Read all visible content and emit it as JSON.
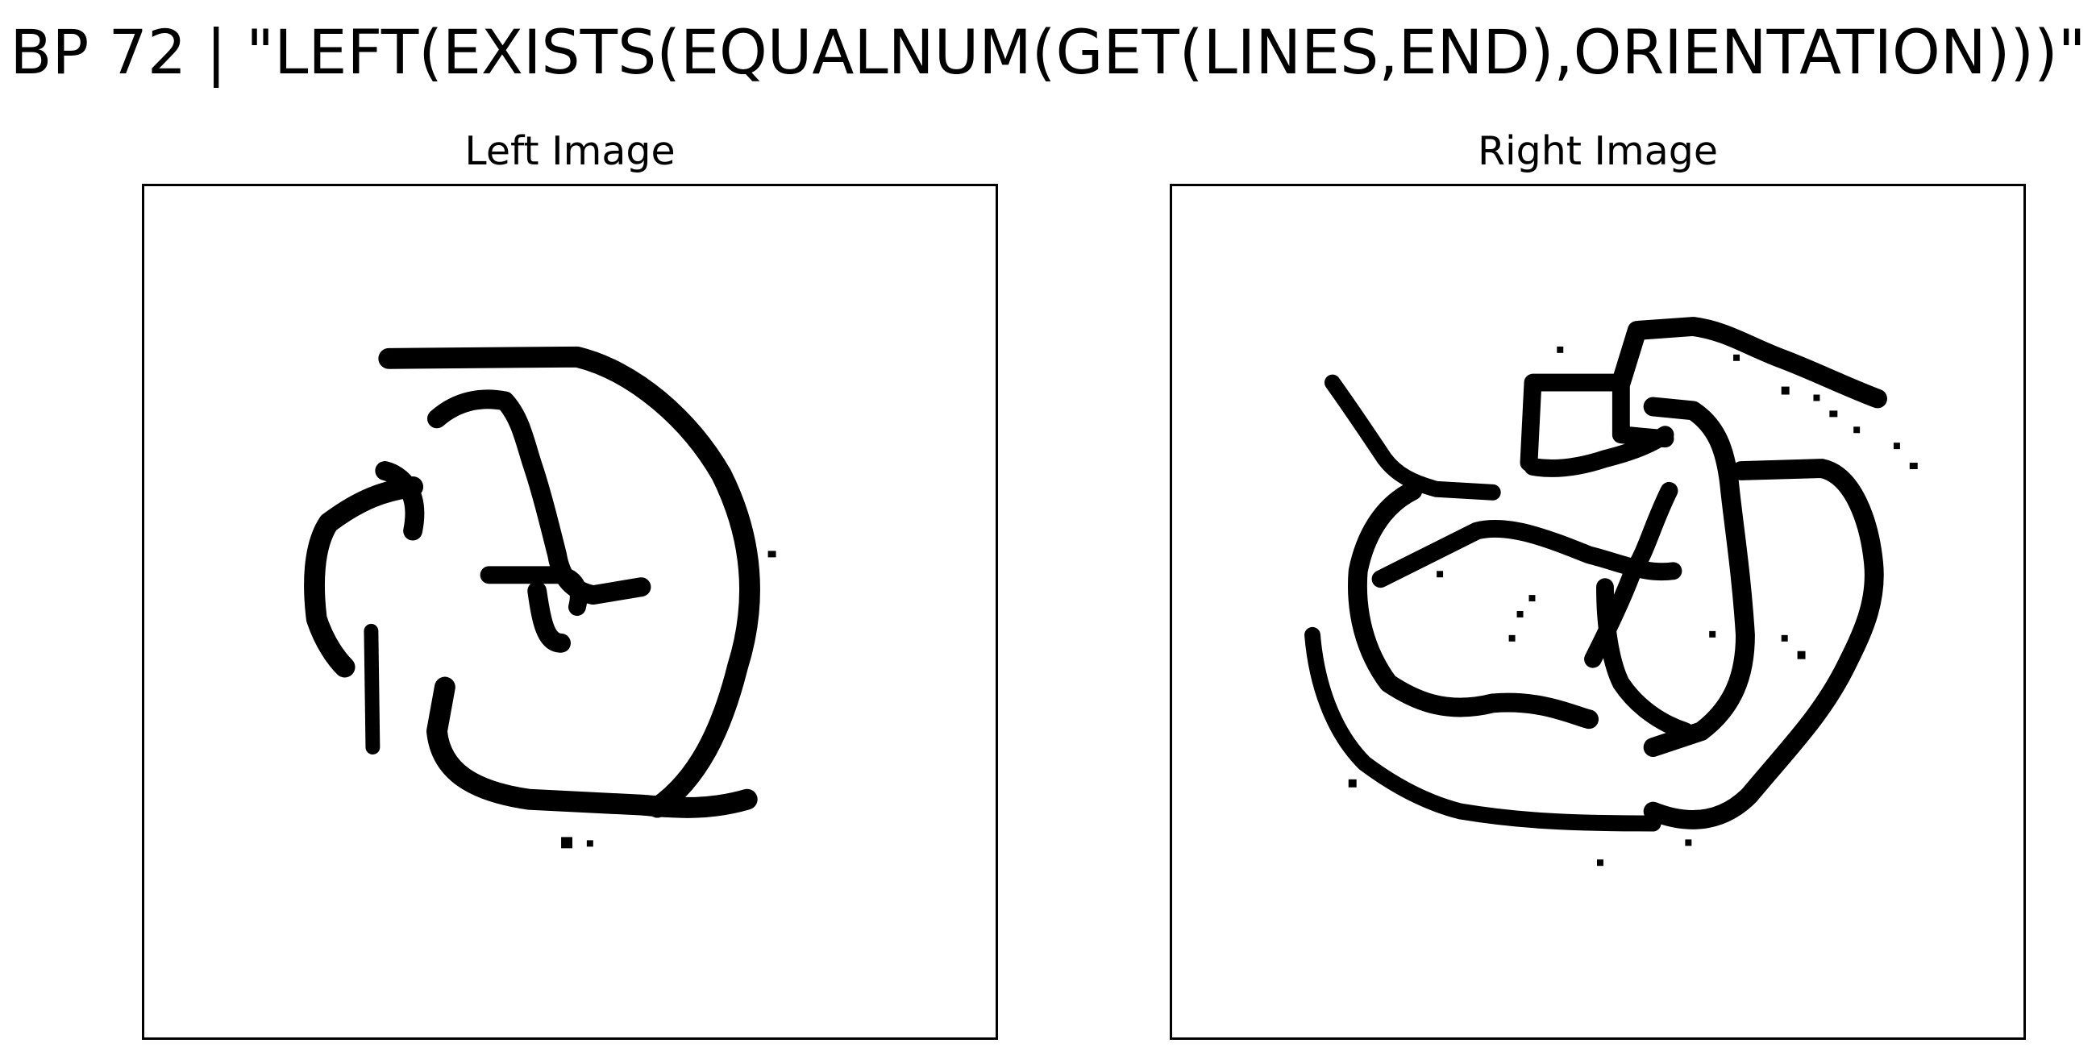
{
  "figure": {
    "title": "BP 72 | \"LEFT(EXISTS(EQUALNUM(GET(LINES,END),ORIENTATION)))\"",
    "left_label": "Left Image",
    "right_label": "Right Image"
  },
  "colors": {
    "ink": "#000000",
    "background": "#ffffff"
  }
}
